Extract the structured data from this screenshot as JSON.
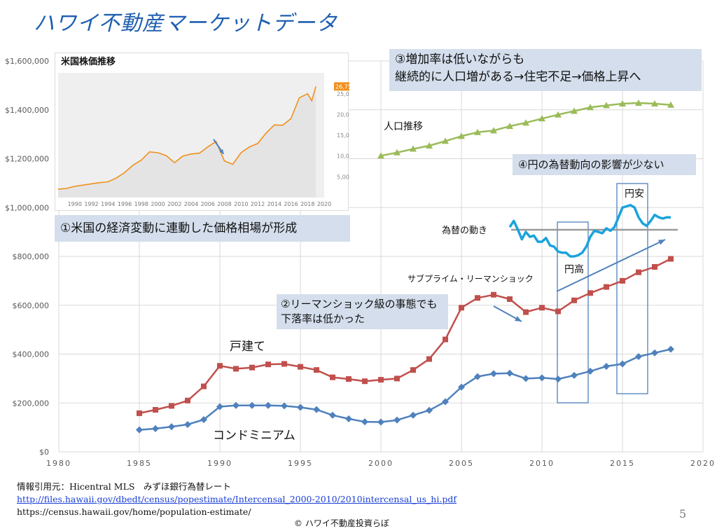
{
  "slide": {
    "title": "ハワイ不動産マーケットデータ",
    "page_number": "5",
    "copyright": "© ハワイ不動産投資らぼ"
  },
  "callouts": {
    "population_line1": "③増加率は低いながらも",
    "population_line2": "継続的に人口増がある→住宅不足→価格上昇へ",
    "economy": "①米国の経済変動に連動した価格相場が形成",
    "lehman_line1": "②リーマンショック級の事態でも",
    "lehman_line2": "下落率は低かった",
    "yen": "④円の為替動向の影響が少ない"
  },
  "labels": {
    "population": "人口推移",
    "exchange": "為替の動き",
    "yen_strong": "円高",
    "yen_weak": "円安",
    "subprime": "サブプライム・リーマンショック",
    "single_family": "戸建て",
    "condo": "コンドミニアム"
  },
  "footer": {
    "source": "情報引用元：Hicentral MLS　みずほ銀行為替レート",
    "url1": "http://files.hawaii.gov/dbedt/census/popestimate/Intercensal_2000-2010/2010intercensal_us_hi.pdf",
    "url2": "https://census.hawaii.gov/home/population-estimate/"
  },
  "colors": {
    "single_family": "#c0504d",
    "condo": "#4f81bd",
    "population": "#9bbb59",
    "exchange": "#1aa3dc",
    "inset_line": "#f0901e",
    "highlight_box": "#4f81bd"
  },
  "chart_data": [
    {
      "type": "line",
      "x_range": [
        1980,
        2020
      ],
      "x_ticks": [
        "1980",
        "1985",
        "1990",
        "1995",
        "2000",
        "2005",
        "2010",
        "2015",
        "2020"
      ],
      "y_range": [
        0,
        1600000
      ],
      "y_ticks": [
        "$0",
        "$200,000",
        "$400,000",
        "$600,000",
        "$800,000",
        "$1,000,000",
        "$1,200,000",
        "$1,400,000",
        "$1,600,000"
      ],
      "grid": true,
      "series": [
        {
          "name": "戸建て",
          "x": [
            1985,
            1986,
            1987,
            1988,
            1989,
            1990,
            1991,
            1992,
            1993,
            1994,
            1995,
            1996,
            1997,
            1998,
            1999,
            2000,
            2001,
            2002,
            2003,
            2004,
            2005,
            2006,
            2007,
            2008,
            2009,
            2010,
            2011,
            2012,
            2013,
            2014,
            2015,
            2016,
            2017,
            2018
          ],
          "values": [
            158000,
            172000,
            188000,
            210000,
            268000,
            352000,
            340000,
            345000,
            358000,
            360000,
            348000,
            335000,
            305000,
            298000,
            289000,
            295000,
            300000,
            335000,
            380000,
            460000,
            590000,
            630000,
            643000,
            625000,
            572000,
            590000,
            575000,
            620000,
            650000,
            675000,
            700000,
            735000,
            757000,
            790000
          ]
        },
        {
          "name": "コンドミニアム",
          "x": [
            1985,
            1986,
            1987,
            1988,
            1989,
            1990,
            1991,
            1992,
            1993,
            1994,
            1995,
            1996,
            1997,
            1998,
            1999,
            2000,
            2001,
            2002,
            2003,
            2004,
            2005,
            2006,
            2007,
            2008,
            2009,
            2010,
            2011,
            2012,
            2013,
            2014,
            2015,
            2016,
            2017,
            2018
          ],
          "values": [
            90000,
            95000,
            103000,
            112000,
            132000,
            185000,
            190000,
            190000,
            190000,
            188000,
            182000,
            173000,
            150000,
            135000,
            123000,
            122000,
            130000,
            150000,
            170000,
            205000,
            265000,
            308000,
            320000,
            322000,
            300000,
            303000,
            298000,
            313000,
            330000,
            350000,
            360000,
            390000,
            405000,
            420000
          ]
        },
        {
          "name": "人口推移",
          "x": [
            2000,
            2001,
            2002,
            2003,
            2004,
            2005,
            2006,
            2007,
            2008,
            2009,
            2010,
            2011,
            2012,
            2013,
            2014,
            2015,
            2016,
            2017,
            2018
          ],
          "values": [
            1212000,
            1225000,
            1240000,
            1253000,
            1272000,
            1292000,
            1308000,
            1315000,
            1333000,
            1347000,
            1364000,
            1380000,
            1395000,
            1410000,
            1418000,
            1425000,
            1428000,
            1425000,
            1420000
          ]
        },
        {
          "name": "為替の動き",
          "x": [
            2008.0,
            2008.25,
            2008.5,
            2008.75,
            2009.0,
            2009.25,
            2009.5,
            2009.75,
            2010.0,
            2010.25,
            2010.5,
            2010.75,
            2011.0,
            2011.25,
            2011.5,
            2011.75,
            2012.0,
            2012.25,
            2012.5,
            2012.75,
            2013.0,
            2013.25,
            2013.5,
            2013.75,
            2014.0,
            2014.25,
            2014.5,
            2014.75,
            2015.0,
            2015.25,
            2015.5,
            2015.75,
            2016.0,
            2016.25,
            2016.5,
            2016.75,
            2017.0,
            2017.25,
            2017.5,
            2017.75,
            2018.0
          ],
          "values": [
            920000,
            945000,
            910000,
            870000,
            900000,
            880000,
            885000,
            860000,
            860000,
            875000,
            845000,
            840000,
            820000,
            815000,
            815000,
            800000,
            800000,
            805000,
            815000,
            840000,
            880000,
            905000,
            900000,
            895000,
            915000,
            905000,
            920000,
            960000,
            1000000,
            1005000,
            1010000,
            1000000,
            960000,
            935000,
            925000,
            945000,
            970000,
            960000,
            955000,
            960000,
            960000
          ]
        }
      ]
    },
    {
      "type": "area",
      "title": "米国株価推移",
      "x_range": [
        1988,
        2020
      ],
      "x_ticks": [
        "1990",
        "1992",
        "1994",
        "1996",
        "1998",
        "2000",
        "2002",
        "2004",
        "2006",
        "2008",
        "2010",
        "2012",
        "2014",
        "2016",
        "2018",
        "2020"
      ],
      "y_range": [
        0,
        28000
      ],
      "y_ticks": [
        "5,000",
        "10,000",
        "15,000",
        "20,000",
        "25,000"
      ],
      "last_value_label": "26,753",
      "series": [
        {
          "name": "",
          "x": [
            1988,
            1989,
            1990,
            1991,
            1992,
            1993,
            1994,
            1995,
            1996,
            1997,
            1998,
            1999,
            2000,
            2001,
            2002,
            2003,
            2004,
            2005,
            2006,
            2007,
            2008,
            2009,
            2010,
            2011,
            2012,
            2013,
            2014,
            2015,
            2016,
            2017,
            2018,
            2018.5,
            2019
          ],
          "values": [
            2000,
            2200,
            2700,
            3000,
            3300,
            3600,
            3800,
            4700,
            6000,
            7800,
            9000,
            11000,
            10800,
            10100,
            8400,
            10000,
            10500,
            10700,
            12200,
            13500,
            8800,
            8000,
            10800,
            12200,
            13000,
            15500,
            17500,
            17400,
            19000,
            24000,
            25000,
            23300,
            26753
          ]
        }
      ]
    }
  ]
}
